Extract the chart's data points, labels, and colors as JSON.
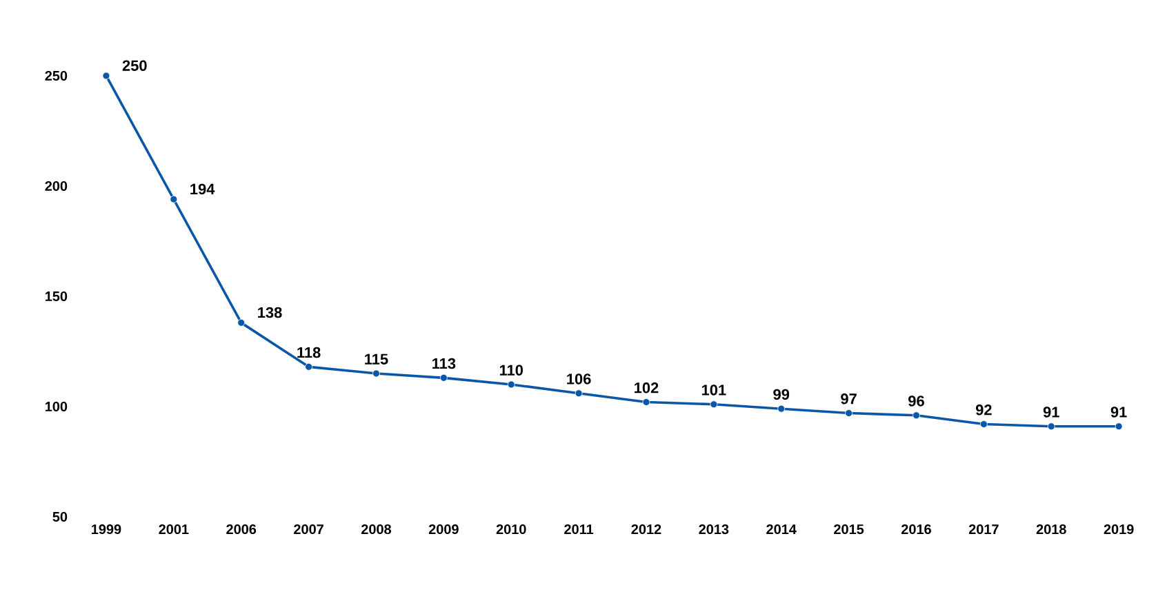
{
  "chart_data": {
    "type": "line",
    "categories": [
      "1999",
      "2001",
      "2006",
      "2007",
      "2008",
      "2009",
      "2010",
      "2011",
      "2012",
      "2013",
      "2014",
      "2015",
      "2016",
      "2017",
      "2018",
      "2019"
    ],
    "values": [
      250,
      194,
      138,
      118,
      115,
      113,
      110,
      106,
      102,
      101,
      99,
      97,
      96,
      92,
      91,
      91
    ],
    "color": "#0a56a8",
    "ylim": [
      50,
      250
    ],
    "yticks": [
      50,
      100,
      150,
      200,
      250
    ],
    "data_labels": true,
    "marker": "circle",
    "line_style": "solid",
    "grid": false
  }
}
